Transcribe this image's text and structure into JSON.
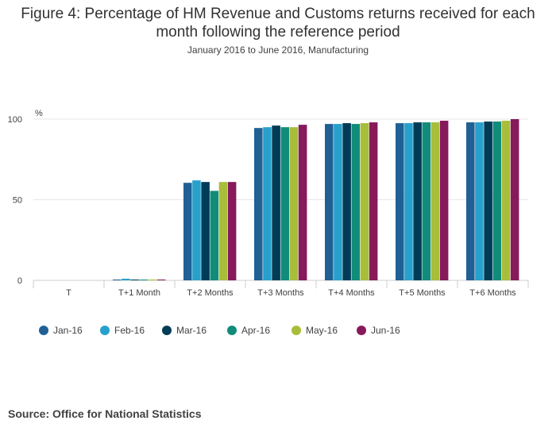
{
  "title": "Figure 4: Percentage of HM Revenue and Customs returns received for each month following the reference period",
  "subtitle": "January 2016 to June 2016, Manufacturing",
  "source": "Source: Office for National Statistics",
  "chart_data": {
    "type": "bar",
    "title": "Figure 4: Percentage of HM Revenue and Customs returns received for each month following the reference period",
    "subtitle": "January 2016 to June 2016, Manufacturing",
    "ylabel": "%",
    "xlabel": "",
    "ylim": [
      0,
      100
    ],
    "yticks": [
      0,
      50,
      100
    ],
    "grid": true,
    "legend": "bottom-left",
    "categories": [
      "T",
      "T+1 Month",
      "T+2 Months",
      "T+3 Months",
      "T+4 Months",
      "T+5 Months",
      "T+6 Months"
    ],
    "series": [
      {
        "name": "Jan-16",
        "color": "#206095",
        "values": [
          0,
          0.5,
          60.5,
          94.5,
          97,
          97.5,
          98
        ]
      },
      {
        "name": "Feb-16",
        "color": "#27a0cc",
        "values": [
          0,
          1,
          62,
          95,
          97,
          97.5,
          98
        ]
      },
      {
        "name": "Mar-16",
        "color": "#003c57",
        "values": [
          0,
          0.5,
          61,
          96,
          97.5,
          98,
          98.5
        ]
      },
      {
        "name": "Apr-16",
        "color": "#118c7b",
        "values": [
          0,
          0.5,
          55.5,
          95,
          97,
          98,
          98.5
        ]
      },
      {
        "name": "May-16",
        "color": "#a8bd3a",
        "values": [
          0,
          0.5,
          61,
          95,
          97.5,
          98,
          99
        ]
      },
      {
        "name": "Jun-16",
        "color": "#871a5b",
        "values": [
          0,
          0.5,
          61,
          96.5,
          98,
          99,
          100
        ]
      }
    ]
  }
}
